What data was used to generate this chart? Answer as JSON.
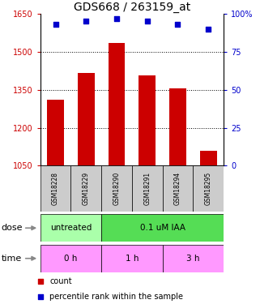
{
  "title": "GDS668 / 263159_at",
  "samples": [
    "GSM18228",
    "GSM18229",
    "GSM18290",
    "GSM18291",
    "GSM18294",
    "GSM18295"
  ],
  "bar_values": [
    1310,
    1415,
    1535,
    1405,
    1355,
    1110
  ],
  "dot_values": [
    93,
    95,
    97,
    95,
    93,
    90
  ],
  "bar_color": "#cc0000",
  "dot_color": "#0000cc",
  "ylim_left": [
    1050,
    1650
  ],
  "ylim_right": [
    0,
    100
  ],
  "yticks_left": [
    1050,
    1200,
    1350,
    1500,
    1650
  ],
  "yticks_right": [
    0,
    25,
    50,
    75,
    100
  ],
  "ytick_labels_left": [
    "1050",
    "1200",
    "1350",
    "1500",
    "1650"
  ],
  "ytick_labels_right": [
    "0",
    "25",
    "50",
    "75",
    "100%"
  ],
  "grid_values": [
    1200,
    1350,
    1500
  ],
  "dose_groups": [
    {
      "text": "untreated",
      "start": 0,
      "end": 1,
      "color": "#aaffaa"
    },
    {
      "text": "0.1 uM IAA",
      "start": 2,
      "end": 5,
      "color": "#55dd55"
    }
  ],
  "time_groups": [
    {
      "text": "0 h",
      "start": 0,
      "end": 1,
      "color": "#ff99ff"
    },
    {
      "text": "1 h",
      "start": 2,
      "end": 3,
      "color": "#ff99ff"
    },
    {
      "text": "3 h",
      "start": 4,
      "end": 5,
      "color": "#ff99ff"
    }
  ],
  "sample_box_color": "#cccccc",
  "legend_count_color": "#cc0000",
  "legend_percentile_color": "#0000cc",
  "bar_width": 0.55,
  "title_fontsize": 10,
  "tick_fontsize": 7,
  "label_fontsize": 7
}
